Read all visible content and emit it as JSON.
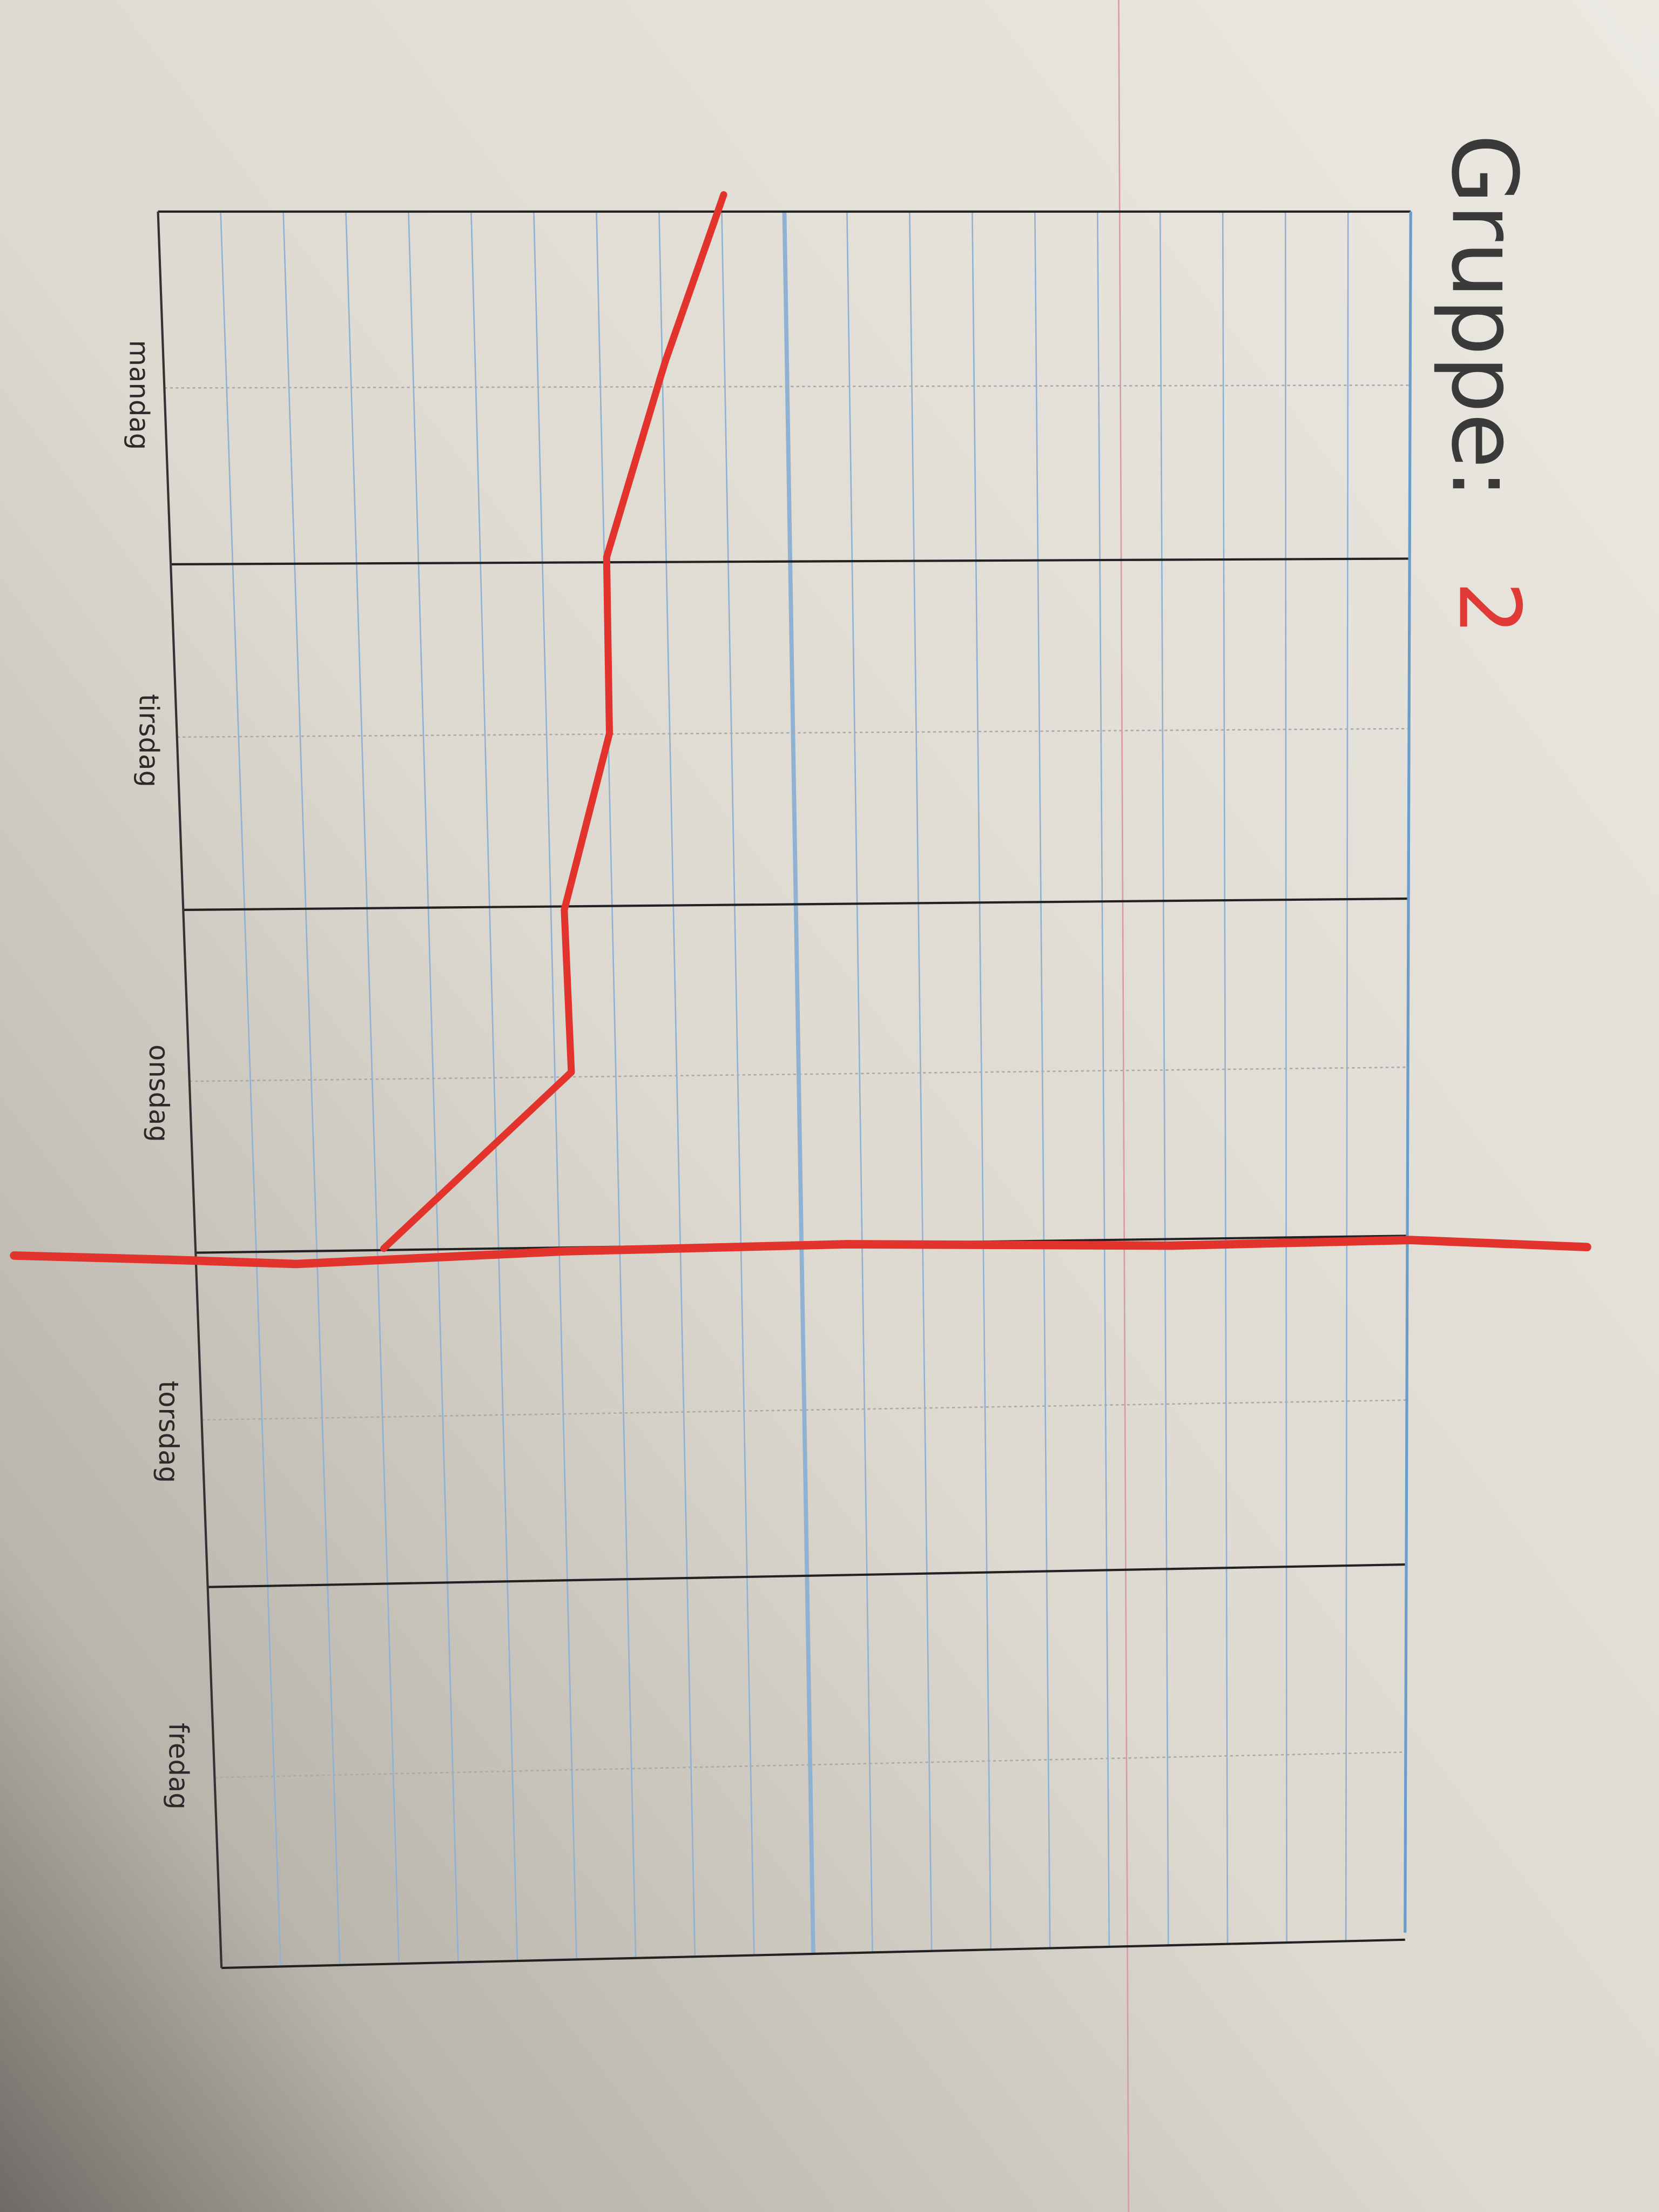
{
  "header": {
    "label": "Gruppe:",
    "group": "2"
  },
  "days": [
    "mandag",
    "tirsdag",
    "onsdag",
    "torsdag",
    "fredag"
  ]
}
